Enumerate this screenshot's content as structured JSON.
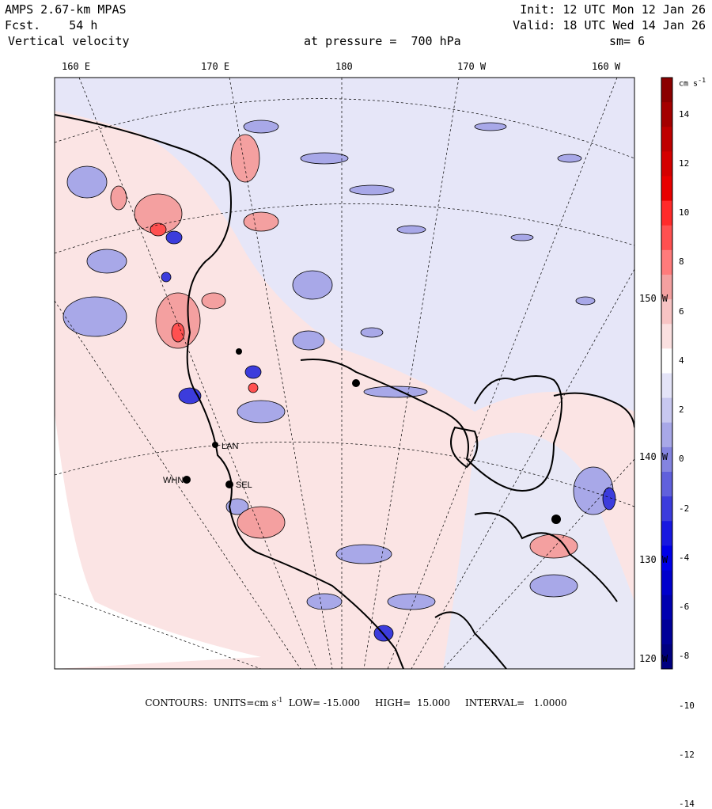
{
  "header": {
    "model": "AMPS 2.67-km MPAS",
    "forecast": "Fcst.    54 h",
    "field": "Vertical velocity",
    "init": "Init: 12 UTC Mon 12 Jan 26",
    "valid": "Valid: 18 UTC Wed 14 Jan 26",
    "pressure": "at pressure =  700 hPa",
    "smoothing": "sm= 6"
  },
  "longitude_labels": [
    "160 E",
    "170 E",
    "180",
    "170 W",
    "160 W"
  ],
  "latitude_labels": [
    "150 W",
    "140 W",
    "130 W",
    "120 W"
  ],
  "stations": [
    "LAN",
    "WHN",
    "SEL"
  ],
  "colorbar": {
    "units": "cm s",
    "units_exp": "-1",
    "ticks": [
      "14",
      "12",
      "10",
      "8",
      "6",
      "4",
      "2",
      "0",
      "-2",
      "-4",
      "-6",
      "-8",
      "-10",
      "-12",
      "-14"
    ],
    "colors": [
      "#8b0000",
      "#a40000",
      "#be0000",
      "#d40000",
      "#e80000",
      "#ff2a2a",
      "#ff5050",
      "#ff7b7b",
      "#f4a0a0",
      "#f8c4c4",
      "#fbe0e0",
      "#ffffff",
      "#e4e4f8",
      "#c8c8f0",
      "#a8a8e8",
      "#8484e0",
      "#6060dc",
      "#3c3cdc",
      "#1818e0",
      "#0000e8",
      "#0000cc",
      "#0000b0",
      "#000098",
      "#000080"
    ]
  },
  "footer": {
    "text": "CONTOURS:  UNITS=cm s",
    "units_exp": "-1",
    "rest": "  LOW= -15.000     HIGH=  15.000     INTERVAL=   1.0000"
  }
}
